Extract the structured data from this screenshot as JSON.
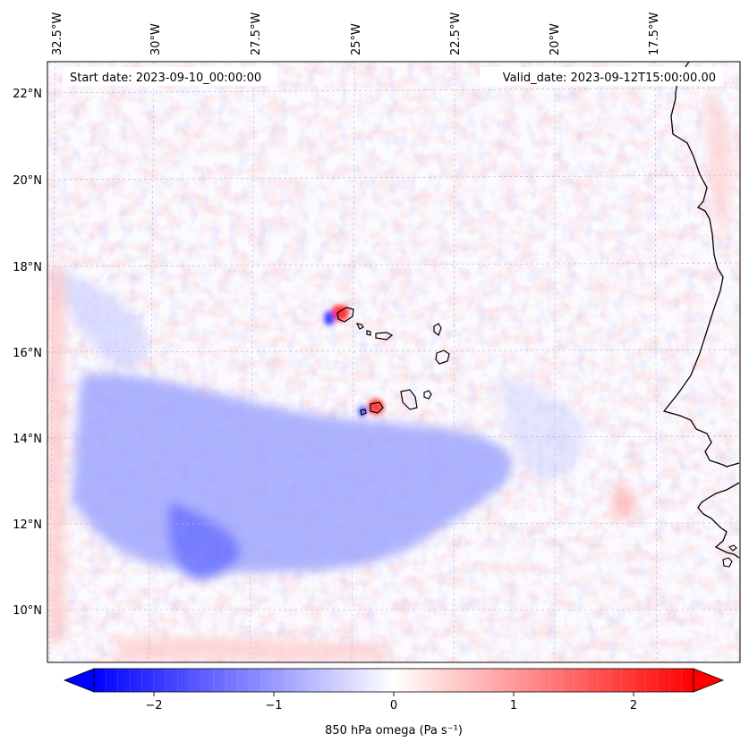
{
  "map": {
    "header": {
      "start_date": "Start date: 2023-09-10_00:00:00",
      "valid_date": "Valid_date: 2023-09-12T15:00:00.00"
    },
    "longitude_labels": [
      "32.5°W",
      "30°W",
      "27.5°W",
      "25°W",
      "22.5°W",
      "20°W",
      "17.5°W"
    ],
    "latitude_labels": [
      "22°N",
      "20°N",
      "18°N",
      "16°N",
      "14°N",
      "12°N",
      "10°N"
    ],
    "gridlines": true,
    "field": "850 hPa omega",
    "colormap": "bwr",
    "colorbar": {
      "label": "850 hPa omega (Pa s⁻¹)",
      "ticks": [
        "−2",
        "−1",
        "0",
        "1",
        "2"
      ],
      "tick_values": [
        -2,
        -1,
        0,
        1,
        2
      ],
      "range": [
        -2.5,
        2.5
      ],
      "extend": "both",
      "orientation": "horizontal"
    },
    "colors": {
      "negative": "#0000ff",
      "zero": "#ffffff",
      "positive": "#ff0000"
    }
  }
}
